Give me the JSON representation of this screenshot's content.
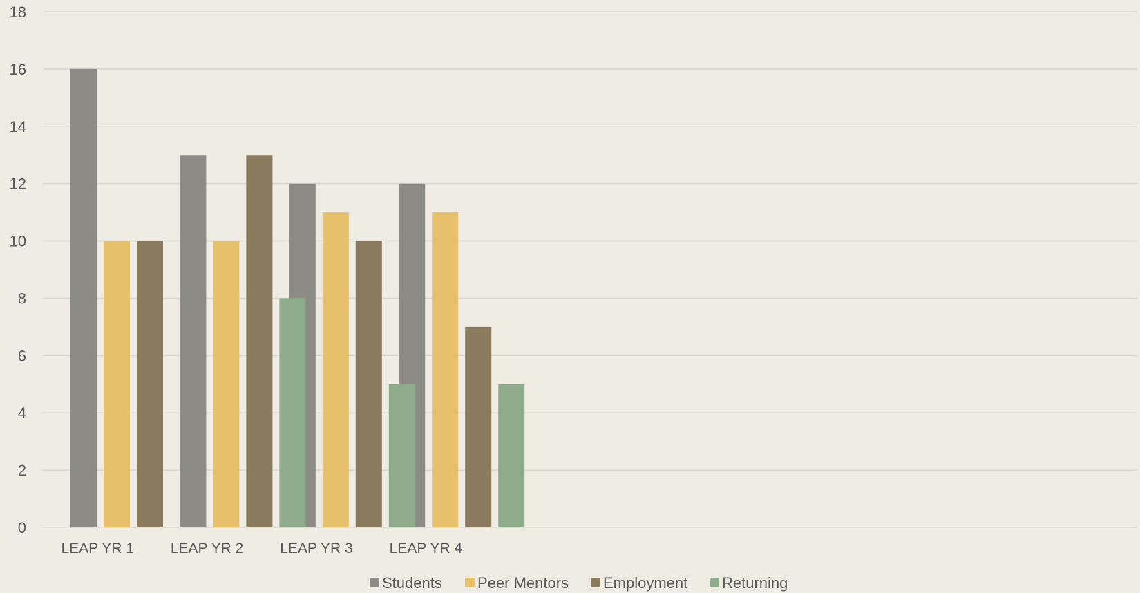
{
  "chart_data": {
    "type": "bar",
    "title": "",
    "xlabel": "",
    "ylabel": "",
    "ylim": [
      0,
      18
    ],
    "yticks": [
      0,
      2,
      4,
      6,
      8,
      10,
      12,
      14,
      16,
      18
    ],
    "grid": true,
    "legend_position": "bottom",
    "categories": [
      "LEAP YR 1",
      "LEAP YR 2",
      "LEAP YR 3",
      "LEAP YR 4",
      "",
      "",
      "",
      "",
      "",
      ""
    ],
    "series": [
      {
        "name": "Students",
        "color": "#8c8c84",
        "values": [
          16,
          13,
          12,
          12,
          null,
          null,
          null,
          null,
          null,
          null
        ]
      },
      {
        "name": "Peer Mentors",
        "color": "#e6c06b",
        "values": [
          10,
          10,
          11,
          11,
          null,
          null,
          null,
          null,
          null,
          null
        ]
      },
      {
        "name": "Employment",
        "color": "#8a7b5f",
        "values": [
          10,
          13,
          10,
          7,
          null,
          null,
          null,
          null,
          null,
          null
        ]
      },
      {
        "name": "Returning",
        "color": "#8eab8c",
        "values": [
          null,
          8,
          5,
          5,
          null,
          null,
          null,
          null,
          null,
          null
        ]
      }
    ]
  }
}
